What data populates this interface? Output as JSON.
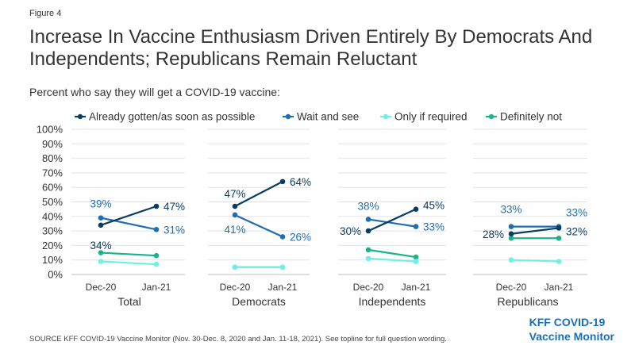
{
  "figure_label": "Figure 4",
  "title": "Increase In Vaccine Enthusiasm Driven Entirely By Democrats And Independents; Republicans Remain Reluctant",
  "subtitle": "Percent who say they will get a COVID-19 vaccine:",
  "source": "SOURCE KFF COVID-19 Vaccine Monitor (Nov. 30-Dec. 8, 2020 and Jan. 11-18, 2021). See topline for full question wording.",
  "brand": {
    "line1": "KFF COVID-19",
    "line2": "Vaccine Monitor"
  },
  "chart_data": {
    "type": "line",
    "title": "Increase In Vaccine Enthusiasm Driven Entirely By Democrats And Independents; Republicans Remain Reluctant",
    "ylim": [
      0,
      100
    ],
    "yticks": [
      "0%",
      "10%",
      "20%",
      "30%",
      "40%",
      "50%",
      "60%",
      "70%",
      "80%",
      "90%",
      "100%"
    ],
    "x": [
      "Dec-20",
      "Jan-21"
    ],
    "grid": true,
    "legend_position": "top",
    "series_meta": [
      {
        "name": "Already gotten/as soon as possible",
        "color": "#0b3c61"
      },
      {
        "name": "Wait and see",
        "color": "#1f6db3"
      },
      {
        "name": "Only if required",
        "color": "#6ff0e4"
      },
      {
        "name": "Definitely not",
        "color": "#18b58b"
      }
    ],
    "panels": [
      {
        "name": "Total",
        "values": [
          [
            34,
            47
          ],
          [
            39,
            31
          ],
          [
            9,
            7
          ],
          [
            15,
            13
          ]
        ],
        "labels": [
          {
            "series": 0,
            "point": 0,
            "text": "34%"
          },
          {
            "series": 0,
            "point": 1,
            "text": "47%"
          },
          {
            "series": 1,
            "point": 0,
            "text": "39%"
          },
          {
            "series": 1,
            "point": 1,
            "text": "31%"
          }
        ]
      },
      {
        "name": "Democrats",
        "values": [
          [
            47,
            64
          ],
          [
            41,
            26
          ],
          [
            5,
            5
          ],
          [
            5,
            5
          ]
        ],
        "labels": [
          {
            "series": 0,
            "point": 0,
            "text": "47%"
          },
          {
            "series": 0,
            "point": 1,
            "text": "64%"
          },
          {
            "series": 1,
            "point": 0,
            "text": "41%"
          },
          {
            "series": 1,
            "point": 1,
            "text": "26%"
          }
        ]
      },
      {
        "name": "Independents",
        "values": [
          [
            30,
            45
          ],
          [
            38,
            33
          ],
          [
            11,
            9
          ],
          [
            17,
            12
          ]
        ],
        "labels": [
          {
            "series": 0,
            "point": 0,
            "text": "30%"
          },
          {
            "series": 0,
            "point": 1,
            "text": "45%"
          },
          {
            "series": 1,
            "point": 0,
            "text": "38%"
          },
          {
            "series": 1,
            "point": 1,
            "text": "33%"
          }
        ]
      },
      {
        "name": "Republicans",
        "values": [
          [
            28,
            32
          ],
          [
            33,
            33
          ],
          [
            10,
            9
          ],
          [
            25,
            25
          ]
        ],
        "labels": [
          {
            "series": 0,
            "point": 0,
            "text": "28%"
          },
          {
            "series": 0,
            "point": 1,
            "text": "32%"
          },
          {
            "series": 1,
            "point": 0,
            "text": "33%"
          },
          {
            "series": 1,
            "point": 1,
            "text": "33%"
          }
        ]
      }
    ]
  }
}
